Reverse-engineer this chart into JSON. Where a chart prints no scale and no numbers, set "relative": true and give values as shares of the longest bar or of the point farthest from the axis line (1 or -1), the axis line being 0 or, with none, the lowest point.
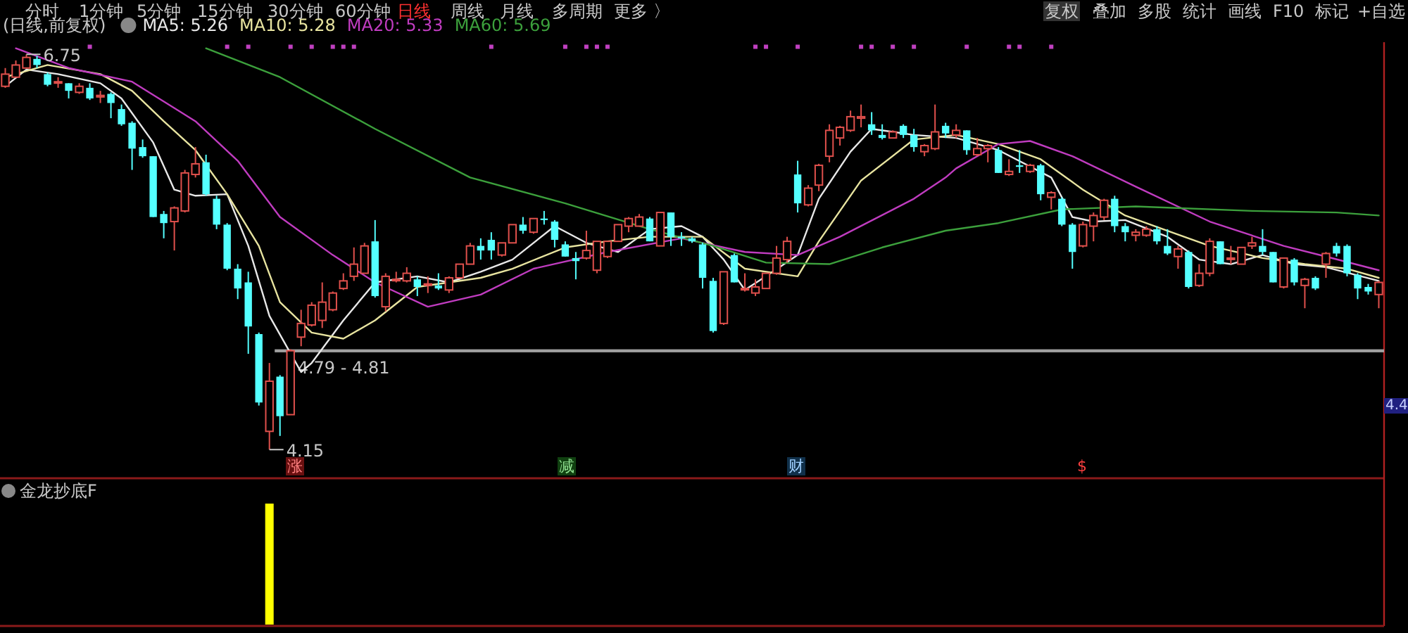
{
  "chart_data": [
    {
      "type": "candlestick",
      "title": "(日线,前复权)",
      "legend": "top left",
      "ylim": [
        3.98,
        6.83
      ],
      "categories": [
        null,
        null,
        null,
        null,
        null,
        null,
        null,
        null,
        null,
        null,
        null,
        null,
        null,
        null,
        null,
        null,
        null,
        null,
        null,
        null,
        null,
        null,
        null,
        null,
        null,
        null,
        null,
        null,
        null,
        null,
        null,
        null,
        null,
        null,
        null,
        null,
        null,
        null,
        null,
        null,
        null,
        null,
        null,
        null,
        null,
        null,
        null,
        null,
        null,
        null,
        null,
        null,
        null,
        null,
        null,
        null,
        null,
        null,
        null,
        null,
        null,
        null,
        null,
        null,
        null,
        null,
        null,
        null,
        null,
        null,
        null,
        null,
        null,
        null,
        null,
        null,
        null,
        null,
        null,
        null,
        null,
        null,
        null,
        null,
        null,
        null,
        null,
        null,
        null,
        null,
        null,
        null,
        null,
        null,
        null,
        null,
        null,
        null,
        null,
        null,
        null,
        null,
        null,
        null,
        null,
        null,
        null,
        null,
        null,
        null,
        null,
        null,
        null,
        null,
        null,
        null,
        null,
        null,
        null,
        null,
        null,
        null,
        null,
        null,
        null,
        null,
        null,
        null,
        null,
        null,
        null
      ],
      "ohlc": [
        [
          6.54,
          6.66,
          6.53,
          6.62
        ],
        [
          6.6,
          6.71,
          6.6,
          6.68
        ],
        [
          6.66,
          6.75,
          6.66,
          6.73
        ],
        [
          6.72,
          6.74,
          6.66,
          6.68
        ],
        [
          6.62,
          6.63,
          6.54,
          6.55
        ],
        [
          6.57,
          6.6,
          6.53,
          6.57
        ],
        [
          6.56,
          6.56,
          6.46,
          6.51
        ],
        [
          6.5,
          6.56,
          6.49,
          6.54
        ],
        [
          6.53,
          6.56,
          6.45,
          6.46
        ],
        [
          6.47,
          6.51,
          6.43,
          6.48
        ],
        [
          6.49,
          6.5,
          6.33,
          6.43
        ],
        [
          6.39,
          6.42,
          6.28,
          6.29
        ],
        [
          6.3,
          6.31,
          5.99,
          6.13
        ],
        [
          6.14,
          6.19,
          6.07,
          6.08
        ],
        [
          6.08,
          6.08,
          5.68,
          5.68
        ],
        [
          5.7,
          5.72,
          5.54,
          5.64
        ],
        [
          5.65,
          5.75,
          5.46,
          5.74
        ],
        [
          5.72,
          5.99,
          5.71,
          5.97
        ],
        [
          5.96,
          6.14,
          5.94,
          6.03
        ],
        [
          6.04,
          6.09,
          5.82,
          5.83
        ],
        [
          5.8,
          5.82,
          5.6,
          5.63
        ],
        [
          5.63,
          5.64,
          5.33,
          5.34
        ],
        [
          5.34,
          5.37,
          5.14,
          5.21
        ],
        [
          5.25,
          5.32,
          4.78,
          4.96
        ],
        [
          4.91,
          4.92,
          4.44,
          4.46
        ],
        [
          4.27,
          4.72,
          4.15,
          4.6
        ],
        [
          4.63,
          4.64,
          4.24,
          4.37
        ],
        [
          4.38,
          4.81,
          4.38,
          4.8
        ],
        [
          4.89,
          5.07,
          4.83,
          4.98
        ],
        [
          4.97,
          5.12,
          4.96,
          5.1
        ],
        [
          5.0,
          5.25,
          4.95,
          5.12
        ],
        [
          5.07,
          5.19,
          5.06,
          5.18
        ],
        [
          5.21,
          5.31,
          5.2,
          5.26
        ],
        [
          5.29,
          5.48,
          5.26,
          5.37
        ],
        [
          5.31,
          5.51,
          5.31,
          5.49
        ],
        [
          5.52,
          5.66,
          5.15,
          5.16
        ],
        [
          5.09,
          5.31,
          5.06,
          5.29
        ],
        [
          5.27,
          5.32,
          5.25,
          5.27
        ],
        [
          5.26,
          5.35,
          5.25,
          5.31
        ],
        [
          5.27,
          5.29,
          5.16,
          5.22
        ],
        [
          5.24,
          5.29,
          5.18,
          5.24
        ],
        [
          5.23,
          5.31,
          5.2,
          5.21
        ],
        [
          5.2,
          5.29,
          5.18,
          5.28
        ],
        [
          5.28,
          5.37,
          5.28,
          5.37
        ],
        [
          5.37,
          5.51,
          5.37,
          5.49
        ],
        [
          5.49,
          5.54,
          5.4,
          5.46
        ],
        [
          5.53,
          5.58,
          5.4,
          5.46
        ],
        [
          5.43,
          5.51,
          5.42,
          5.51
        ],
        [
          5.51,
          5.63,
          5.51,
          5.63
        ],
        [
          5.63,
          5.68,
          5.57,
          5.59
        ],
        [
          5.58,
          5.67,
          5.57,
          5.67
        ],
        [
          5.67,
          5.72,
          5.63,
          5.66
        ],
        [
          5.65,
          5.66,
          5.48,
          5.53
        ],
        [
          5.5,
          5.52,
          5.42,
          5.42
        ],
        [
          5.41,
          5.45,
          5.27,
          5.39
        ],
        [
          5.41,
          5.59,
          5.4,
          5.46
        ],
        [
          5.33,
          5.52,
          5.31,
          5.52
        ],
        [
          5.42,
          5.52,
          5.41,
          5.52
        ],
        [
          5.52,
          5.63,
          5.52,
          5.63
        ],
        [
          5.62,
          5.68,
          5.58,
          5.67
        ],
        [
          5.62,
          5.7,
          5.62,
          5.68
        ],
        [
          5.67,
          5.68,
          5.52,
          5.52
        ],
        [
          5.49,
          5.71,
          5.49,
          5.71
        ],
        [
          5.71,
          5.71,
          5.49,
          5.55
        ],
        [
          5.55,
          5.58,
          5.49,
          5.54
        ],
        [
          5.54,
          5.55,
          5.51,
          5.52
        ],
        [
          5.5,
          5.51,
          5.21,
          5.28
        ],
        [
          5.26,
          5.28,
          4.92,
          4.93
        ],
        [
          4.98,
          5.32,
          4.97,
          5.32
        ],
        [
          5.43,
          5.44,
          5.25,
          5.25
        ],
        [
          5.21,
          5.31,
          5.19,
          5.21
        ],
        [
          5.18,
          5.27,
          5.16,
          5.22
        ],
        [
          5.21,
          5.31,
          5.21,
          5.31
        ],
        [
          5.31,
          5.49,
          5.3,
          5.41
        ],
        [
          5.4,
          5.55,
          5.38,
          5.52
        ],
        [
          5.96,
          6.05,
          5.71,
          5.77
        ],
        [
          5.76,
          5.89,
          5.75,
          5.87
        ],
        [
          5.89,
          6.03,
          5.85,
          6.02
        ],
        [
          6.08,
          6.29,
          6.04,
          6.25
        ],
        [
          6.2,
          6.28,
          6.15,
          6.27
        ],
        [
          6.25,
          6.38,
          6.24,
          6.34
        ],
        [
          6.33,
          6.42,
          6.27,
          6.34
        ],
        [
          6.29,
          6.37,
          6.22,
          6.25
        ],
        [
          6.22,
          6.29,
          6.19,
          6.2
        ],
        [
          6.2,
          6.25,
          6.2,
          6.24
        ],
        [
          6.28,
          6.29,
          6.2,
          6.22
        ],
        [
          6.22,
          6.26,
          6.11,
          6.14
        ],
        [
          6.11,
          6.16,
          6.08,
          6.15
        ],
        [
          6.13,
          6.42,
          6.12,
          6.24
        ],
        [
          6.28,
          6.3,
          6.2,
          6.23
        ],
        [
          6.22,
          6.29,
          6.2,
          6.25
        ],
        [
          6.25,
          6.25,
          6.09,
          6.12
        ],
        [
          6.09,
          6.2,
          6.08,
          6.13
        ],
        [
          6.13,
          6.16,
          6.04,
          6.15
        ],
        [
          6.12,
          6.14,
          5.97,
          5.97
        ],
        [
          5.96,
          6.06,
          5.95,
          5.98
        ],
        [
          6.02,
          6.12,
          5.97,
          6.01
        ],
        [
          5.98,
          6.03,
          5.97,
          6.02
        ],
        [
          6.02,
          6.03,
          5.79,
          5.83
        ],
        [
          5.81,
          5.85,
          5.73,
          5.84
        ],
        [
          5.8,
          5.81,
          5.62,
          5.63
        ],
        [
          5.63,
          5.64,
          5.34,
          5.45
        ],
        [
          5.49,
          5.65,
          5.48,
          5.63
        ],
        [
          5.62,
          5.71,
          5.52,
          5.69
        ],
        [
          5.68,
          5.8,
          5.66,
          5.79
        ],
        [
          5.8,
          5.82,
          5.58,
          5.62
        ],
        [
          5.62,
          5.64,
          5.52,
          5.58
        ],
        [
          5.56,
          5.6,
          5.52,
          5.58
        ],
        [
          5.56,
          5.62,
          5.55,
          5.6
        ],
        [
          5.6,
          5.62,
          5.5,
          5.52
        ],
        [
          5.49,
          5.6,
          5.43,
          5.44
        ],
        [
          5.42,
          5.49,
          5.34,
          5.47
        ],
        [
          5.45,
          5.46,
          5.21,
          5.22
        ],
        [
          5.23,
          5.37,
          5.22,
          5.31
        ],
        [
          5.31,
          5.54,
          5.29,
          5.52
        ],
        [
          5.52,
          5.52,
          5.37,
          5.37
        ],
        [
          5.41,
          5.49,
          5.37,
          5.41
        ],
        [
          5.37,
          5.48,
          5.37,
          5.48
        ],
        [
          5.49,
          5.55,
          5.47,
          5.51
        ],
        [
          5.49,
          5.6,
          5.43,
          5.45
        ],
        [
          5.45,
          5.45,
          5.25,
          5.25
        ],
        [
          5.22,
          5.41,
          5.21,
          5.41
        ],
        [
          5.4,
          5.41,
          5.23,
          5.25
        ],
        [
          5.23,
          5.28,
          5.08,
          5.27
        ],
        [
          5.28,
          5.29,
          5.2,
          5.21
        ],
        [
          5.37,
          5.45,
          5.28,
          5.44
        ],
        [
          5.49,
          5.51,
          5.42,
          5.44
        ],
        [
          5.49,
          5.5,
          5.29,
          5.31
        ],
        [
          5.3,
          5.31,
          5.14,
          5.21
        ],
        [
          5.22,
          5.24,
          5.17,
          5.19
        ],
        [
          5.17,
          5.26,
          5.08,
          5.25
        ]
      ],
      "series": [
        {
          "name": "MA5: 5.26",
          "type": "line",
          "color": "#e8e8e8",
          "values": [
            6.54,
            null,
            6.65,
            null,
            null,
            6.62,
            null,
            null,
            null,
            6.56,
            null,
            6.46,
            null,
            null,
            6.17,
            null,
            5.86,
            null,
            5.82,
            null,
            null,
            5.83,
            null,
            5.49,
            null,
            5.03,
            null,
            null,
            4.66,
            4.72,
            null,
            null,
            5.0,
            null,
            null,
            5.25,
            null,
            null,
            null,
            5.29,
            null,
            null,
            5.25,
            null,
            null,
            5.32,
            null,
            null,
            5.4,
            null,
            null,
            null,
            5.62,
            null,
            null,
            5.51,
            null,
            null,
            5.45,
            null,
            null,
            5.6,
            null,
            null,
            5.62,
            null,
            5.55,
            null,
            5.4,
            null,
            5.2,
            null,
            5.29,
            null,
            null,
            5.43,
            null,
            5.8,
            null,
            null,
            6.11,
            null,
            6.26,
            null,
            null,
            null,
            6.22,
            null,
            null,
            null,
            6.2,
            null,
            null,
            null,
            6.12,
            null,
            null,
            null,
            null,
            5.94,
            null,
            5.68,
            null,
            5.65,
            null,
            null,
            5.66,
            null,
            null,
            null,
            5.55,
            null,
            null,
            5.4,
            null,
            null,
            5.37,
            null,
            null,
            5.43,
            null,
            null,
            5.37,
            null,
            null,
            5.35,
            null,
            null,
            null,
            null,
            5.26
          ]
        },
        {
          "name": "MA10: 5.28",
          "type": "line",
          "color": "#e8e4a0",
          "values": [
            6.6,
            null,
            null,
            null,
            6.68,
            null,
            null,
            null,
            null,
            6.62,
            null,
            null,
            6.51,
            null,
            null,
            6.31,
            null,
            null,
            6.12,
            null,
            null,
            5.83,
            null,
            null,
            5.49,
            null,
            5.12,
            null,
            null,
            4.92,
            null,
            null,
            4.88,
            null,
            null,
            5.0,
            null,
            null,
            null,
            5.22,
            null,
            null,
            null,
            null,
            null,
            5.28,
            null,
            null,
            5.34,
            null,
            null,
            null,
            null,
            5.48,
            null,
            null,
            null,
            5.52,
            null,
            null,
            null,
            5.55,
            null,
            null,
            null,
            null,
            5.55,
            null,
            null,
            null,
            5.34,
            null,
            null,
            null,
            null,
            5.29,
            null,
            5.52,
            null,
            null,
            null,
            5.92,
            null,
            null,
            null,
            null,
            6.19,
            null,
            null,
            null,
            6.22,
            null,
            null,
            null,
            6.16,
            null,
            null,
            null,
            6.06,
            null,
            null,
            null,
            5.86,
            null,
            null,
            null,
            5.69,
            null,
            null,
            null,
            5.59,
            null,
            null,
            null,
            5.49,
            null,
            null,
            null,
            null,
            5.41,
            null,
            null,
            null,
            5.37,
            null,
            null,
            null,
            5.34,
            null,
            null,
            5.28
          ]
        },
        {
          "name": "MA20: 5.33",
          "type": "line",
          "color": "#c03cc0",
          "values": [
            null,
            6.79,
            null,
            null,
            null,
            null,
            6.66,
            null,
            null,
            null,
            null,
            null,
            6.57,
            null,
            null,
            null,
            null,
            null,
            6.31,
            null,
            null,
            null,
            6.05,
            null,
            null,
            null,
            5.68,
            null,
            null,
            null,
            null,
            5.43,
            null,
            null,
            null,
            5.25,
            null,
            null,
            null,
            null,
            5.09,
            null,
            null,
            null,
            null,
            5.17,
            null,
            null,
            null,
            null,
            5.34,
            null,
            null,
            null,
            null,
            null,
            null,
            5.45,
            null,
            null,
            null,
            null,
            null,
            null,
            5.54,
            null,
            null,
            null,
            null,
            null,
            5.45,
            null,
            null,
            null,
            null,
            5.43,
            null,
            null,
            null,
            5.55,
            null,
            null,
            null,
            null,
            null,
            null,
            5.8,
            null,
            null,
            5.94,
            6.0,
            null,
            null,
            null,
            6.16,
            null,
            null,
            6.18,
            null,
            null,
            null,
            6.08,
            null,
            null,
            null,
            null,
            null,
            5.88,
            null,
            null,
            null,
            null,
            null,
            null,
            5.65,
            null,
            null,
            null,
            null,
            null,
            null,
            5.49,
            null,
            null,
            null,
            5.42,
            null,
            null,
            null,
            null,
            5.33
          ]
        },
        {
          "name": "MA60: 5.69",
          "type": "line",
          "color": "#3ca03c",
          "values": [
            null,
            null,
            null,
            null,
            null,
            null,
            null,
            null,
            null,
            null,
            null,
            null,
            null,
            null,
            null,
            null,
            null,
            null,
            null,
            6.79,
            null,
            null,
            null,
            null,
            null,
            null,
            6.6,
            null,
            null,
            null,
            null,
            null,
            null,
            null,
            null,
            6.26,
            null,
            null,
            null,
            null,
            null,
            null,
            null,
            null,
            5.94,
            null,
            null,
            null,
            null,
            null,
            null,
            null,
            null,
            5.77,
            null,
            null,
            null,
            null,
            null,
            null,
            null,
            5.6,
            null,
            null,
            null,
            null,
            null,
            5.49,
            null,
            null,
            null,
            null,
            5.38,
            null,
            null,
            null,
            null,
            null,
            5.37,
            null,
            null,
            null,
            null,
            5.48,
            null,
            null,
            null,
            null,
            null,
            5.59,
            null,
            null,
            null,
            null,
            5.64,
            null,
            null,
            null,
            null,
            null,
            5.73,
            null,
            null,
            null,
            null,
            null,
            null,
            5.75,
            null,
            null,
            null,
            null,
            null,
            null,
            null,
            null,
            null,
            null,
            5.72,
            null,
            null,
            null,
            null,
            null,
            null,
            null,
            5.71,
            null,
            null,
            null,
            5.69
          ]
        },
        {
          "type": "scatter",
          "color": "#c040c0",
          "values": [
            null,
            null,
            null,
            null,
            null,
            null,
            null,
            null,
            6.8,
            null,
            null,
            null,
            null,
            null,
            null,
            null,
            null,
            null,
            null,
            null,
            null,
            6.8,
            null,
            6.8,
            null,
            null,
            null,
            6.8,
            null,
            6.8,
            null,
            6.8,
            6.8,
            6.8,
            null,
            null,
            null,
            null,
            null,
            null,
            null,
            null,
            null,
            null,
            null,
            null,
            6.8,
            null,
            null,
            null,
            null,
            null,
            null,
            6.8,
            null,
            6.8,
            6.8,
            6.8,
            null,
            null,
            null,
            null,
            null,
            null,
            null,
            null,
            null,
            null,
            null,
            null,
            null,
            6.8,
            6.8,
            null,
            null,
            6.8,
            null,
            null,
            null,
            null,
            null,
            6.8,
            6.8,
            null,
            6.8,
            null,
            6.8,
            null,
            null,
            null,
            null,
            6.8,
            null,
            null,
            null,
            6.8,
            6.8,
            null,
            null,
            6.8,
            null,
            null,
            null,
            null,
            null,
            null,
            null,
            null,
            null,
            null,
            null,
            null,
            null,
            null,
            null,
            null,
            null,
            null,
            null,
            null,
            null,
            null,
            null,
            null,
            null,
            null,
            null,
            null,
            null,
            null,
            null
          ]
        }
      ],
      "bands": [
        {
          "axis": "y",
          "from": 4.79,
          "to": 4.81,
          "label": "4.79 - 4.81",
          "color": "#a0a0a0"
        }
      ],
      "annotations": [
        "分时",
        "1分钟",
        "5分钟",
        "15分钟",
        "30分钟",
        "60分钟",
        "日线",
        "周线",
        "月线",
        "多周期",
        "更多 〉",
        "复权",
        "叠加",
        "多股",
        "统计",
        "画线",
        "F10",
        "标记",
        "+自选",
        "4.4",
        "涨",
        "减",
        "财",
        "$",
        "6.75",
        "4.15"
      ]
    },
    {
      "type": "bar",
      "title": "金龙抄底F",
      "relative": true,
      "color": "#ffff00",
      "categories": [
        null,
        null,
        null,
        null,
        null,
        null,
        null,
        null,
        null,
        null,
        null,
        null,
        null,
        null,
        null,
        null,
        null,
        null,
        null,
        null,
        null,
        null,
        null,
        null,
        null,
        null,
        null,
        null,
        null,
        null,
        null,
        null,
        null,
        null,
        null,
        null,
        null,
        null,
        null,
        null,
        null,
        null,
        null,
        null,
        null,
        null,
        null,
        null,
        null,
        null,
        null,
        null,
        null,
        null,
        null,
        null,
        null,
        null,
        null,
        null,
        null,
        null,
        null,
        null,
        null,
        null,
        null,
        null,
        null,
        null,
        null,
        null,
        null,
        null,
        null,
        null,
        null,
        null,
        null,
        null,
        null,
        null,
        null,
        null,
        null,
        null,
        null,
        null,
        null,
        null,
        null,
        null,
        null,
        null,
        null,
        null,
        null,
        null,
        null,
        null,
        null,
        null,
        null,
        null,
        null,
        null,
        null,
        null,
        null,
        null,
        null,
        null,
        null,
        null,
        null,
        null,
        null,
        null,
        null,
        null,
        null,
        null,
        null,
        null,
        null,
        null,
        null,
        null,
        null,
        null,
        null
      ],
      "values": [
        null,
        null,
        null,
        null,
        null,
        null,
        null,
        null,
        null,
        null,
        null,
        null,
        null,
        null,
        null,
        null,
        null,
        null,
        null,
        null,
        null,
        null,
        null,
        null,
        null,
        1,
        null,
        null,
        null,
        null,
        null,
        null,
        null,
        null,
        null,
        null,
        null,
        null,
        null,
        null,
        null,
        null,
        null,
        null,
        null,
        null,
        null,
        null,
        null,
        null,
        null,
        null,
        null,
        null,
        null,
        null,
        null,
        null,
        null,
        null,
        null,
        null,
        null,
        null,
        null,
        null,
        null,
        null,
        null,
        null,
        null,
        null,
        null,
        null,
        null,
        null,
        null,
        null,
        null,
        null,
        null,
        null,
        null,
        null,
        null,
        null,
        null,
        null,
        null,
        null,
        null,
        null,
        null,
        null,
        null,
        null,
        null,
        null,
        null,
        null,
        null,
        null,
        null,
        null,
        null,
        null,
        null,
        null,
        null,
        null,
        null,
        null,
        null,
        null,
        null,
        null,
        null,
        null,
        null,
        null,
        null,
        null,
        null,
        null,
        null,
        null,
        null,
        null,
        null,
        null,
        null
      ]
    }
  ]
}
